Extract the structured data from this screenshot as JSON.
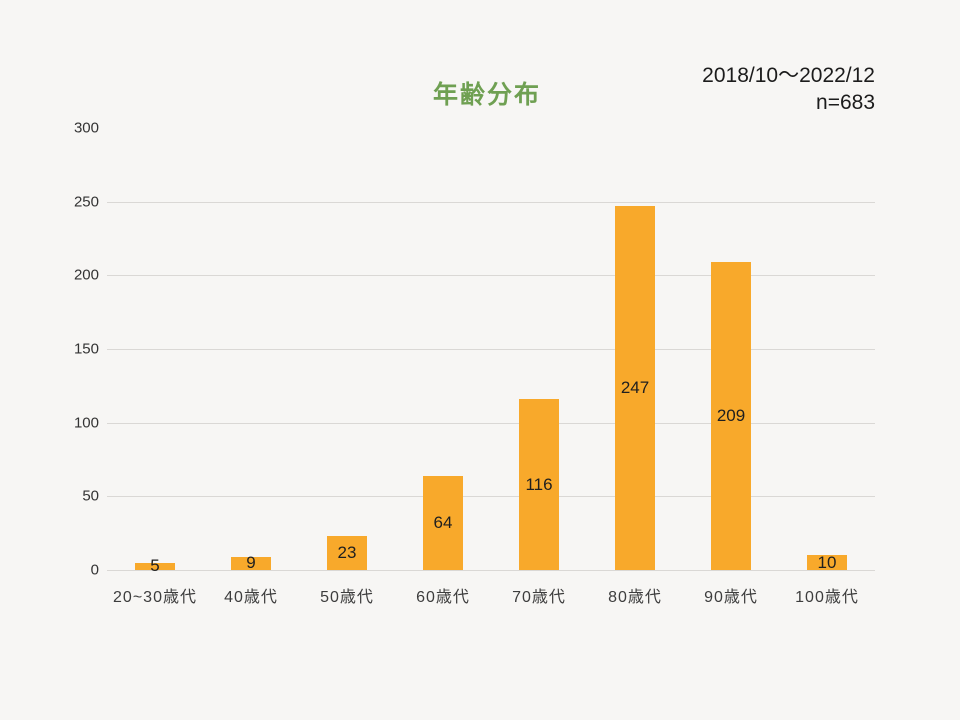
{
  "header": {
    "period": "2018/10〜2022/12",
    "n": "n=683"
  },
  "chart_data": {
    "type": "bar",
    "title": "年齢分布",
    "categories": [
      "20~30歳代",
      "40歳代",
      "50歳代",
      "60歳代",
      "70歳代",
      "80歳代",
      "90歳代",
      "100歳代"
    ],
    "values": [
      5,
      9,
      23,
      64,
      116,
      247,
      209,
      10
    ],
    "xlabel": "",
    "ylabel": "",
    "ylim": [
      0,
      300
    ],
    "yticks": [
      0,
      50,
      100,
      150,
      200,
      250,
      300
    ],
    "gridlines": [
      0,
      50,
      100,
      150,
      200,
      250
    ],
    "grid": "horizontal-only",
    "legend": "none",
    "data_label_position": "center-of-bar",
    "colors": {
      "bar": "#F8A92B",
      "title": "#6FA052",
      "background": "#F7F6F4",
      "gridline": "#DAD8D5",
      "value_label": "#1f1f1f",
      "axis_text": "#3d3d3d"
    }
  }
}
